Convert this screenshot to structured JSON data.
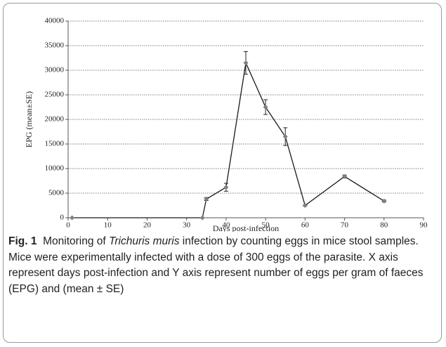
{
  "chart_data": {
    "type": "line",
    "xlabel": "Days post-infection",
    "ylabel": "EPG (mean±SE)",
    "x": [
      1,
      34,
      35,
      40,
      45,
      50,
      55,
      60,
      70,
      80
    ],
    "series": [
      {
        "color": "#7f7f7f",
        "line_color": "#1a1a1a",
        "values": [
          0,
          0,
          3800,
          6200,
          31500,
          22500,
          16500,
          2500,
          8400,
          3400
        ],
        "errors": [
          0,
          0,
          300,
          800,
          2300,
          1500,
          1800,
          100,
          300,
          200
        ]
      }
    ],
    "xlim": [
      0,
      90
    ],
    "xticks": [
      0,
      10,
      20,
      30,
      40,
      50,
      60,
      70,
      80,
      90
    ],
    "ylim": [
      0,
      40000
    ],
    "yticks": [
      0,
      5000,
      10000,
      15000,
      20000,
      25000,
      30000,
      35000,
      40000
    ],
    "grid": true
  },
  "caption": {
    "label": "Fig. 1",
    "before": "Monitoring of ",
    "species": "Trichuris muris",
    "after": " infection by counting eggs in mice stool samples. Mice were experimentally infected with a dose of 300 eggs of the parasite. X axis represent days post-infection and Y axis represent number of eggs per gram of faeces (EPG) and (mean ± SE)"
  }
}
